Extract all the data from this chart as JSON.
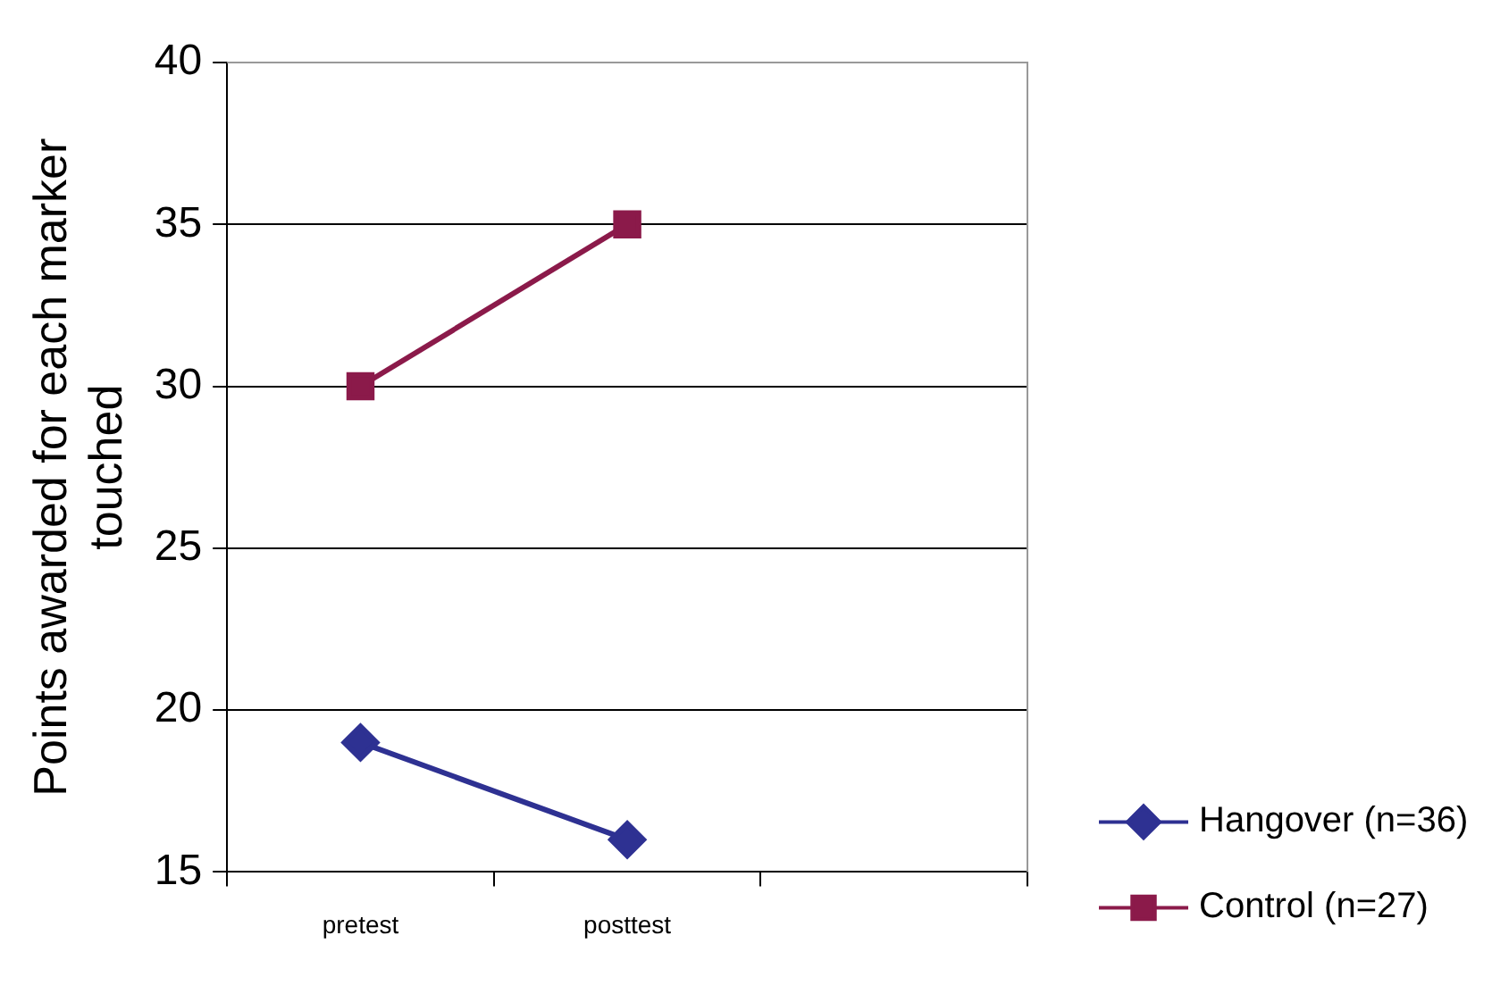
{
  "chart_data": {
    "type": "line",
    "ylabel": "Points awarded for each marker touched",
    "categories": [
      "pretest",
      "posttest",
      null
    ],
    "series": [
      {
        "name": "Hangover (n=36)",
        "color": "#2e3192",
        "values": [
          19,
          16,
          null
        ],
        "marker": "diamond"
      },
      {
        "name": "Control (n=27)",
        "color": "#8b1a4a",
        "values": [
          30,
          35,
          null
        ],
        "marker": "square"
      }
    ],
    "ylim": [
      15,
      40
    ],
    "yticks": [
      15,
      20,
      25,
      30,
      35,
      40
    ],
    "grid": "y",
    "legend": "bottom right",
    "line_style": "solid"
  }
}
